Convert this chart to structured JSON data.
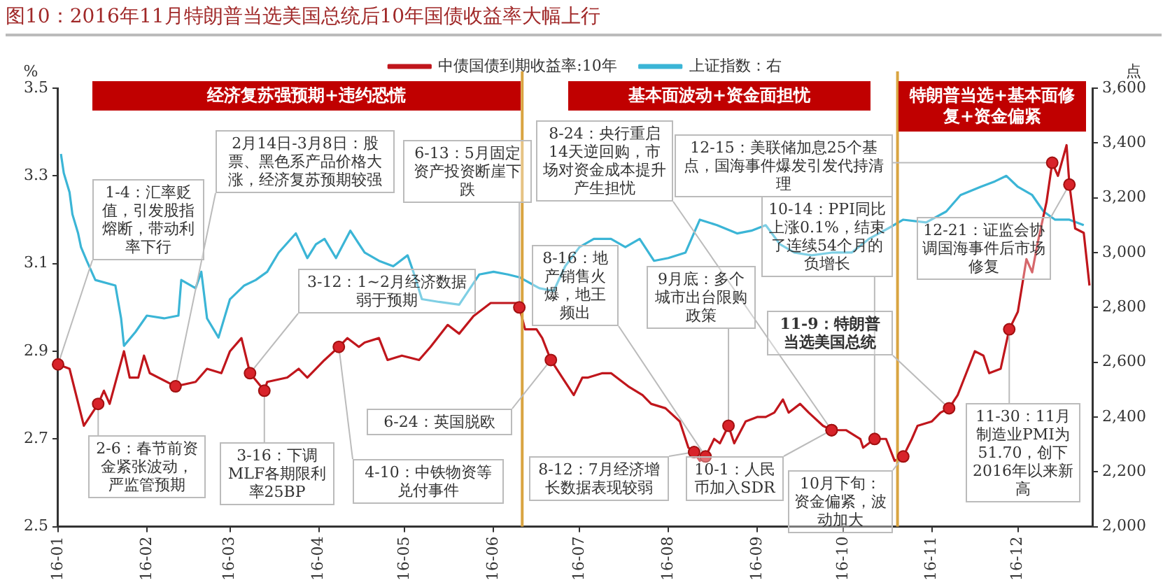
{
  "chart_data": {
    "type": "line",
    "title": "图10：2016年11月特朗普当选美国总统后10年国债收益率大幅上行",
    "ylabel": "%",
    "y2label": "点",
    "series": [
      {
        "name": "中债国债到期收益率:10年",
        "color": "#c0161c",
        "x": [
          "2016-01-01",
          "2016-01-05",
          "2016-01-10",
          "2016-01-15",
          "2016-01-17",
          "2016-01-19",
          "2016-01-24",
          "2016-01-26",
          "2016-01-29",
          "2016-01-31",
          "2016-02-02",
          "2016-02-11",
          "2016-02-18",
          "2016-02-22",
          "2016-02-27",
          "2016-03-01",
          "2016-03-05",
          "2016-03-08",
          "2016-03-13",
          "2016-03-14",
          "2016-03-21",
          "2016-03-25",
          "2016-03-28",
          "2016-04-03",
          "2016-04-08",
          "2016-04-11",
          "2016-04-15",
          "2016-04-17",
          "2016-04-22",
          "2016-04-25",
          "2016-04-30",
          "2016-05-06",
          "2016-05-10",
          "2016-05-16",
          "2016-05-20",
          "2016-05-25",
          "2016-05-31",
          "2016-06-04",
          "2016-06-09",
          "2016-06-10",
          "2016-06-12",
          "2016-06-16",
          "2016-06-18",
          "2016-06-21",
          "2016-06-25",
          "2016-06-29",
          "2016-07-02",
          "2016-07-04",
          "2016-07-09",
          "2016-07-12",
          "2016-07-18",
          "2016-07-23",
          "2016-07-26",
          "2016-07-31",
          "2016-08-05",
          "2016-08-08",
          "2016-08-10",
          "2016-08-12",
          "2016-08-14",
          "2016-08-17",
          "2016-08-19",
          "2016-08-22",
          "2016-08-24",
          "2016-08-28",
          "2016-09-01",
          "2016-09-04",
          "2016-09-07",
          "2016-09-10",
          "2016-09-12",
          "2016-09-16",
          "2016-09-19",
          "2016-09-24",
          "2016-09-27",
          "2016-10-02",
          "2016-10-07",
          "2016-10-08",
          "2016-10-12",
          "2016-10-16",
          "2016-10-19",
          "2016-10-22",
          "2016-10-25",
          "2016-10-27",
          "2016-11-01",
          "2016-11-04",
          "2016-11-07",
          "2016-11-10",
          "2016-11-13",
          "2016-11-16",
          "2016-11-19",
          "2016-11-21",
          "2016-11-25",
          "2016-11-28",
          "2016-12-01",
          "2016-12-04",
          "2016-12-06",
          "2016-12-08",
          "2016-12-11",
          "2016-12-13",
          "2016-12-15",
          "2016-12-18",
          "2016-12-19",
          "2016-12-21",
          "2016-12-24",
          "2016-12-26"
        ],
        "values": [
          2.87,
          2.86,
          2.73,
          2.78,
          2.81,
          2.78,
          2.9,
          2.84,
          2.84,
          2.89,
          2.85,
          2.82,
          2.83,
          2.86,
          2.85,
          2.9,
          2.93,
          2.85,
          2.81,
          2.83,
          2.84,
          2.86,
          2.84,
          2.88,
          2.91,
          2.93,
          2.91,
          2.92,
          2.93,
          2.88,
          2.89,
          2.88,
          2.91,
          2.96,
          2.94,
          2.98,
          3.01,
          3.01,
          3.01,
          3.0,
          2.95,
          2.95,
          2.93,
          2.88,
          2.84,
          2.8,
          2.84,
          2.84,
          2.85,
          2.85,
          2.82,
          2.8,
          2.78,
          2.77,
          2.74,
          2.68,
          2.67,
          2.65,
          2.66,
          2.7,
          2.69,
          2.73,
          2.69,
          2.74,
          2.75,
          2.75,
          2.76,
          2.79,
          2.76,
          2.78,
          2.76,
          2.73,
          2.72,
          2.72,
          2.7,
          2.68,
          2.7,
          2.7,
          2.65,
          2.66,
          2.7,
          2.73,
          2.74,
          2.76,
          2.77,
          2.8,
          2.85,
          2.9,
          2.89,
          2.85,
          2.86,
          2.95,
          2.99,
          3.11,
          3.08,
          3.15,
          3.24,
          3.33,
          3.3,
          3.37,
          3.28,
          3.18,
          3.17,
          3.05
        ]
      },
      {
        "name": "上证指数：右",
        "color": "#3bb5d6",
        "axis": "y2",
        "x": [
          "2016-01-02",
          "2016-01-03",
          "2016-01-05",
          "2016-01-06",
          "2016-01-08",
          "2016-01-09",
          "2016-01-11",
          "2016-01-14",
          "2016-01-21",
          "2016-01-23",
          "2016-01-24",
          "2016-01-28",
          "2016-02-01",
          "2016-02-07",
          "2016-02-12",
          "2016-02-13",
          "2016-02-18",
          "2016-02-20",
          "2016-02-22",
          "2016-02-26",
          "2016-03-01",
          "2016-03-06",
          "2016-03-10",
          "2016-03-14",
          "2016-03-18",
          "2016-03-24",
          "2016-03-28",
          "2016-03-31",
          "2016-04-03",
          "2016-04-07",
          "2016-04-12",
          "2016-04-17",
          "2016-04-22",
          "2016-04-27",
          "2016-05-02",
          "2016-05-04",
          "2016-05-07",
          "2016-05-13",
          "2016-05-20",
          "2016-05-27",
          "2016-06-01",
          "2016-06-06",
          "2016-06-10",
          "2016-06-17",
          "2016-06-22",
          "2016-06-26",
          "2016-07-01",
          "2016-07-06",
          "2016-07-12",
          "2016-07-17",
          "2016-07-22",
          "2016-07-27",
          "2016-08-01",
          "2016-08-07",
          "2016-08-12",
          "2016-08-18",
          "2016-08-25",
          "2016-08-30",
          "2016-09-04",
          "2016-09-09",
          "2016-09-14",
          "2016-09-20",
          "2016-09-27",
          "2016-10-04",
          "2016-10-10",
          "2016-10-17",
          "2016-10-22",
          "2016-10-30",
          "2016-11-06",
          "2016-11-11",
          "2016-11-18",
          "2016-11-23",
          "2016-11-27",
          "2016-12-01",
          "2016-12-06",
          "2016-12-10",
          "2016-12-14",
          "2016-12-19",
          "2016-12-24"
        ],
        "values": [
          3360,
          3290,
          3220,
          3140,
          3070,
          3020,
          2970,
          2900,
          2880,
          2760,
          2660,
          2710,
          2770,
          2760,
          2770,
          2900,
          2870,
          2930,
          2760,
          2690,
          2830,
          2880,
          2900,
          2930,
          3000,
          3070,
          2980,
          3030,
          3050,
          2980,
          3080,
          3000,
          2970,
          2950,
          2990,
          2930,
          2830,
          2820,
          2810,
          2920,
          2930,
          2920,
          2910,
          2870,
          2860,
          2950,
          3020,
          3050,
          3050,
          3020,
          3050,
          2970,
          2980,
          3000,
          3120,
          3100,
          3070,
          3080,
          3100,
          3030,
          3000,
          2990,
          3000,
          3000,
          3050,
          3090,
          3120,
          3110,
          3150,
          3210,
          3240,
          3260,
          3280,
          3240,
          3210,
          3150,
          3120,
          3120,
          3100
        ]
      }
    ],
    "xlim": [
      "2016-01-01",
      "2016-12-27"
    ],
    "xticks": [
      {
        "value": "2016-01-01",
        "label": "16-01"
      },
      {
        "value": "2016-02-01",
        "label": "16-02"
      },
      {
        "value": "2016-03-01",
        "label": "16-03"
      },
      {
        "value": "2016-04-01",
        "label": "16-04"
      },
      {
        "value": "2016-05-01",
        "label": "16-05"
      },
      {
        "value": "2016-06-01",
        "label": "16-06"
      },
      {
        "value": "2016-07-01",
        "label": "16-07"
      },
      {
        "value": "2016-08-01",
        "label": "16-08"
      },
      {
        "value": "2016-09-01",
        "label": "16-09"
      },
      {
        "value": "2016-10-01",
        "label": "16-10"
      },
      {
        "value": "2016-11-01",
        "label": "16-11"
      },
      {
        "value": "2016-12-01",
        "label": "16-12"
      }
    ],
    "ylim": [
      2.5,
      3.5
    ],
    "yticks": [
      2.5,
      2.7,
      2.9,
      3.1,
      3.3,
      3.5
    ],
    "y2lim": [
      2000,
      3600
    ],
    "y2ticks": [
      {
        "value": 2000,
        "label": "2,000"
      },
      {
        "value": 2200,
        "label": "2,200"
      },
      {
        "value": 2400,
        "label": "2,400"
      },
      {
        "value": 2600,
        "label": "2,600"
      },
      {
        "value": 2800,
        "label": "2,800"
      },
      {
        "value": 3000,
        "label": "3,000"
      },
      {
        "value": 3200,
        "label": "3,200"
      },
      {
        "value": 3400,
        "label": "3,400"
      },
      {
        "value": 3600,
        "label": "3,600"
      }
    ],
    "legend": "top",
    "ref_lines": [
      {
        "axis": "x",
        "value": "2016-06-11",
        "color": "#d9a441"
      },
      {
        "axis": "x",
        "value": "2016-10-20",
        "color": "#d9a441"
      }
    ],
    "annotations": [
      "经济复苏强预期+违约恐慌",
      "基本面波动+资金面担忧",
      "特朗普当选+基本面修复+资金偏紧",
      {
        "text": "1-4：汇率贬值，引发股指熔断，带动利率下行",
        "x": "2016-01-01",
        "y": 2.87
      },
      {
        "text": "2-6：春节前资金紧张波动，严监管预期",
        "x": "2016-01-15",
        "y": 2.78
      },
      {
        "text": "2月14日-3月8日：股票、黑色系产品价格大涨，经济复苏预期较强",
        "x": "2016-02-11",
        "y": 2.82
      },
      {
        "text": "3-12：1~2月经济数据弱于预期",
        "x": "2016-03-08",
        "y": 2.85
      },
      {
        "text": "3-16：下调MLF各期限利率25BP",
        "x": "2016-03-13",
        "y": 2.81
      },
      {
        "text": "4-10：中铁物资等兑付事件",
        "x": "2016-04-08",
        "y": 2.91
      },
      {
        "text": "6-13：5月固定资产投资断崖下跌",
        "x": "2016-06-10",
        "y": 3.0
      },
      {
        "text": "6-24：英国脱欧",
        "x": "2016-06-21",
        "y": 2.88
      },
      {
        "text": "8-12：7月经济增长数据表现较弱",
        "x": "2016-08-10",
        "y": 2.67
      },
      {
        "text": "8-16：地产销售火爆，地王频出",
        "x": "2016-08-14",
        "y": 2.66
      },
      {
        "text": "8-24：央行重启14天逆回购，市场对资金成本提升产生担忧",
        "x": "2016-09-27",
        "y": 2.72
      },
      {
        "text": "9月底：多个城市出台限购政策",
        "x": "2016-08-22",
        "y": 2.73
      },
      {
        "text": "10-1：人民币加入SDR",
        "x": "2016-09-27",
        "y": 2.72
      },
      {
        "text": "10-14：PPI同比上涨0.1%，结束了连续54个月的负增长",
        "x": "2016-10-12",
        "y": 2.7
      },
      {
        "text": "10月下旬：资金偏紧，波动加大",
        "x": "2016-10-22",
        "y": 2.66
      },
      {
        "text": "11-9：特朗普当选美国总统",
        "x": "2016-11-07",
        "y": 2.77
      },
      {
        "text": "11-30：11月制造业PMI为51.70，创下2016年以来新高",
        "x": "2016-11-28",
        "y": 2.95
      },
      {
        "text": "12-15：美联储加息25个基点，国海事件爆发引发代持清理",
        "x": "2016-12-13",
        "y": 3.33
      },
      {
        "text": "12-21：证监会协调国海事件后市场修复",
        "x": "2016-12-19",
        "y": 3.28
      }
    ]
  }
}
